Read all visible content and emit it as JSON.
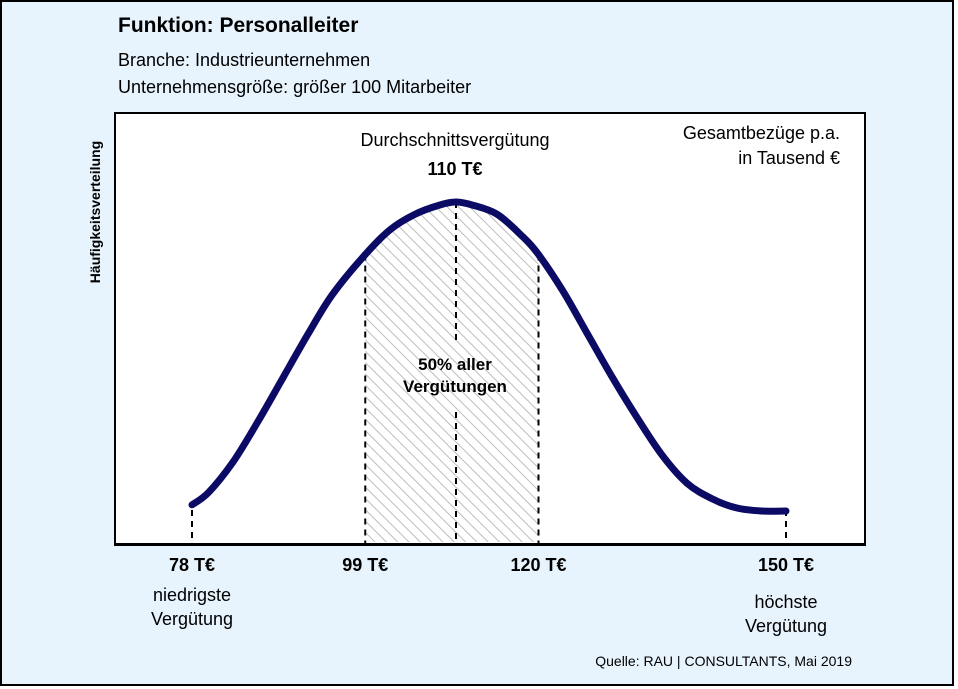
{
  "header": {
    "title": "Funktion: Personalleiter",
    "subtitle1": "Branche: Industrieunternehmen",
    "subtitle2": "Unternehmensgröße: größer 100 Mitarbeiter"
  },
  "colors": {
    "background": "#e8f4fd",
    "curve": "#0b0b66",
    "hatch": "#bdbdbd"
  },
  "chart_data": {
    "type": "area",
    "ylabel": "Häufigkeitsverteilung",
    "xlabel": "",
    "unit_note_line1": "Gesamtbezüge p.a.",
    "unit_note_line2": "in Tausend €",
    "average": {
      "label": "Durchschnittsvergütung",
      "value_label": "110 T€",
      "x": 110
    },
    "shaded_range": {
      "from": 99,
      "to": 120,
      "label_line1": "50% aller",
      "label_line2": "Vergütungen"
    },
    "ticks": [
      {
        "x": 78,
        "label": "78 T€",
        "note_line1": "niedrigste",
        "note_line2": "Vergütung"
      },
      {
        "x": 99,
        "label": "99 T€"
      },
      {
        "x": 120,
        "label": "120 T€"
      },
      {
        "x": 150,
        "label": "150 T€",
        "note_line1": "höchste",
        "note_line2": "Vergütung"
      }
    ],
    "curve": {
      "x": [
        78,
        80,
        83,
        86,
        89,
        92,
        95,
        99,
        102,
        105,
        108,
        110,
        112,
        115,
        118,
        120,
        123,
        126,
        129,
        132,
        135,
        138,
        141,
        144,
        147,
        150
      ],
      "density": [
        0.02,
        0.06,
        0.16,
        0.29,
        0.43,
        0.57,
        0.7,
        0.83,
        0.91,
        0.96,
        0.99,
        1.0,
        0.99,
        0.96,
        0.89,
        0.83,
        0.71,
        0.57,
        0.43,
        0.3,
        0.18,
        0.09,
        0.04,
        0.01,
        0.0,
        0.0
      ]
    }
  },
  "footer": {
    "source": "Quelle: RAU | CONSULTANTS, Mai 2019"
  }
}
